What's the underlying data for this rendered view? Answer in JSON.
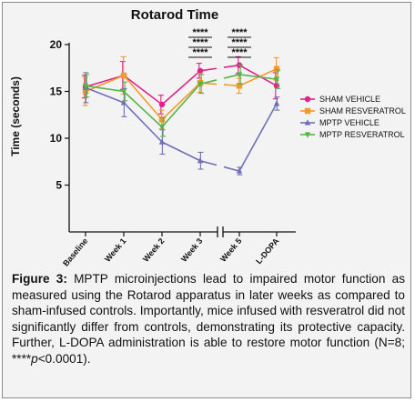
{
  "chart_data": {
    "type": "line",
    "title": "Rotarod Time",
    "ylabel": "Time (seconds)",
    "xlabel": "",
    "ylim": [
      0,
      20
    ],
    "yticks": [
      5,
      10,
      15,
      20
    ],
    "categories": [
      "Baseline",
      "Week 1",
      "Week 2",
      "Week 3",
      "Week 5",
      "L-DOPA"
    ],
    "axis_break_between": [
      "Week 3",
      "Week 5"
    ],
    "legend_position": "right",
    "series": [
      {
        "name": "SHAM VEHICLE",
        "color": "#e0218a",
        "marker": "circle",
        "values": [
          15.5,
          16.7,
          13.6,
          17.2,
          17.8,
          15.6
        ],
        "errors": [
          1.2,
          1.5,
          1.0,
          0.8,
          0.9,
          1.4
        ]
      },
      {
        "name": "SHAM RESVERATROL",
        "color": "#f39a2b",
        "marker": "square",
        "values": [
          15.0,
          16.7,
          12.0,
          15.9,
          15.6,
          17.4
        ],
        "errors": [
          1.5,
          2.0,
          1.0,
          1.0,
          0.8,
          1.2
        ]
      },
      {
        "name": "MPTP VEHICLE",
        "color": "#6f6fb8",
        "marker": "triangle",
        "values": [
          15.4,
          13.8,
          9.6,
          7.6,
          6.5,
          13.7
        ],
        "errors": [
          1.6,
          1.5,
          1.3,
          0.9,
          0.4,
          0.7
        ]
      },
      {
        "name": "MPTP RESVERATROL",
        "color": "#5ab34a",
        "marker": "triangle-down",
        "values": [
          15.6,
          15.0,
          11.2,
          15.8,
          16.8,
          16.3
        ],
        "errors": [
          1.2,
          1.0,
          1.0,
          1.0,
          1.0,
          1.0
        ]
      }
    ],
    "annotations": [
      {
        "category": "Week 3",
        "text": [
          "****",
          "****",
          "****"
        ]
      },
      {
        "category": "Week 5",
        "text": [
          "****",
          "****",
          "****"
        ]
      }
    ]
  },
  "caption": {
    "label": "Figure 3:",
    "text_1": " MPTP microinjections lead to impaired motor function as measured using the Rotarod apparatus in later weeks as compared to sham-infused controls. Importantly, mice infused with resveratrol did not significantly differ from controls, demonstrating its protective capacity. Further, L-DOPA administration is able to restore motor function (N=8; ****",
    "p_symbol": "p",
    "text_2": "<0.0001)."
  }
}
